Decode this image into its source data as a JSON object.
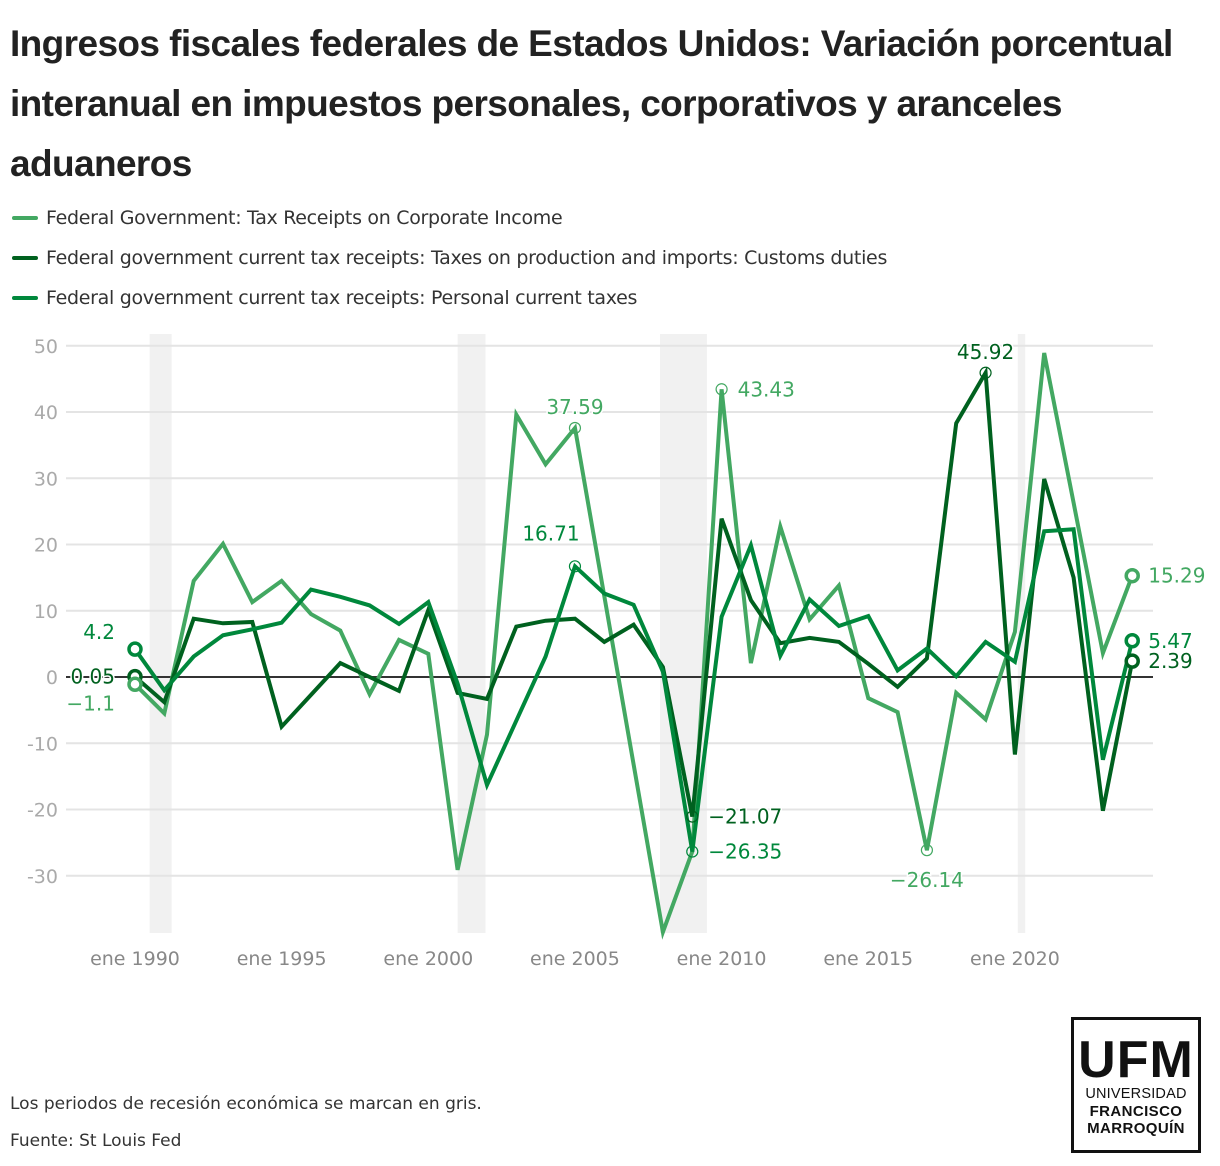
{
  "title": "Ingresos fiscales federales de Estados Unidos: Variación porcentual interanual en impuestos personales, corporativos y aranceles aduaneros",
  "footnotes": {
    "recession_note": "Los periodos de recesión económica se marcan en gris.",
    "source": "Fuente: St Louis Fed"
  },
  "logo": {
    "abbr": "UFM",
    "line1": "UNIVERSIDAD",
    "line2": "FRANCISCO",
    "line3": "MARROQUÍN"
  },
  "chart_data": {
    "type": "line",
    "title": "Ingresos fiscales federales de Estados Unidos: Variación porcentual interanual en impuestos personales, corporativos y aranceles aduaneros",
    "xlabel": "",
    "ylabel": "",
    "x": [
      1990,
      1991,
      1992,
      1993,
      1994,
      1995,
      1996,
      1997,
      1998,
      1999,
      2000,
      2001,
      2002,
      2003,
      2004,
      2005,
      2006,
      2007,
      2008,
      2009,
      2010,
      2011,
      2012,
      2013,
      2014,
      2015,
      2016,
      2017,
      2018,
      2019,
      2020,
      2021,
      2022,
      2023,
      2024
    ],
    "x_ticks": [
      1990,
      1995,
      2000,
      2005,
      2010,
      2015,
      2020
    ],
    "x_tick_labels": [
      "ene 1990",
      "ene 1995",
      "ene 2000",
      "ene 2005",
      "ene 2010",
      "ene 2015",
      "ene 2020"
    ],
    "y_ticks": [
      50,
      40,
      30,
      20,
      10,
      0,
      -10,
      -20,
      -30
    ],
    "y_tick_labels": [
      "50",
      "40",
      "30",
      "20",
      "10",
      "0",
      "-10",
      "-20",
      "-30"
    ],
    "xlim": [
      1989.2,
      2024.7
    ],
    "ylim": [
      -39,
      52
    ],
    "grid": true,
    "legend_position": "top-left",
    "recessions": [
      [
        1990.5,
        1991.25
      ],
      [
        2001.0,
        2001.95
      ],
      [
        2007.9,
        2009.5
      ],
      [
        2020.1,
        2020.35
      ]
    ],
    "series": [
      {
        "name": "Federal Government: Tax Receipts on Corporate Income",
        "color": "#43a862",
        "values": [
          -1.1,
          -5.5,
          14.5,
          20.1,
          11.3,
          14.5,
          9.5,
          7.0,
          -2.6,
          5.6,
          3.5,
          -29.1,
          -8.7,
          39.6,
          32.1,
          37.59,
          12.2,
          -13.2,
          -38.5,
          -26.35,
          43.43,
          2.1,
          22.7,
          8.7,
          13.8,
          -3.2,
          -5.3,
          -26.14,
          -2.4,
          -6.4,
          6.8,
          48.9,
          26.3,
          3.6,
          15.29
        ]
      },
      {
        "name": "Federal government current tax receipts: Taxes on production and imports: Customs duties",
        "color": "#00611f",
        "values": [
          0.05,
          -3.8,
          8.8,
          8.1,
          8.3,
          -7.5,
          -2.7,
          2.1,
          0.0,
          -2.1,
          10.1,
          -2.4,
          -3.3,
          7.6,
          8.5,
          8.8,
          5.3,
          7.9,
          1.5,
          -21.07,
          23.9,
          11.6,
          5.1,
          5.9,
          5.3,
          2.0,
          -1.5,
          2.8,
          38.3,
          45.92,
          -11.7,
          29.9,
          15.0,
          -20.2,
          2.39
        ]
      },
      {
        "name": "Federal government current tax receipts: Personal current taxes",
        "color": "#00883c",
        "values": [
          4.2,
          -2.0,
          3.1,
          6.3,
          7.2,
          8.2,
          13.2,
          12.1,
          10.8,
          8.0,
          11.3,
          -1.0,
          -16.3,
          -6.6,
          3.1,
          16.71,
          12.6,
          10.9,
          0.8,
          -26.35,
          9.1,
          19.9,
          3.2,
          11.7,
          7.7,
          9.2,
          1.0,
          4.3,
          0.1,
          5.3,
          2.3,
          22.0,
          22.3,
          -12.5,
          5.47
        ]
      }
    ],
    "annotations": [
      {
        "series": 2,
        "x": 1990,
        "y": 4.2,
        "text": "4.2",
        "pos": "left-above",
        "start": true
      },
      {
        "series": 1,
        "x": 1990,
        "y": 0.05,
        "text": "0.05",
        "pos": "left",
        "start": true
      },
      {
        "series": 0,
        "x": 1990,
        "y": -1.1,
        "text": "−1.1",
        "pos": "left-below",
        "start": true
      },
      {
        "series": 0,
        "x": 2005,
        "y": 37.59,
        "text": "37.59",
        "pos": "above"
      },
      {
        "series": 2,
        "x": 2005,
        "y": 16.71,
        "text": "16.71",
        "pos": "above-left"
      },
      {
        "series": 0,
        "x": 2010,
        "y": 43.43,
        "text": "43.43",
        "pos": "right"
      },
      {
        "series": 1,
        "x": 2009,
        "y": -21.07,
        "text": "−21.07",
        "pos": "right"
      },
      {
        "series": 2,
        "x": 2009,
        "y": -26.35,
        "text": "−26.35",
        "pos": "right"
      },
      {
        "series": 0,
        "x": 2017,
        "y": -26.14,
        "text": "−26.14",
        "pos": "below"
      },
      {
        "series": 1,
        "x": 2019,
        "y": 45.92,
        "text": "45.92",
        "pos": "above"
      },
      {
        "series": 0,
        "x": 2024,
        "y": 15.29,
        "text": "15.29",
        "pos": "right",
        "end": true
      },
      {
        "series": 2,
        "x": 2024,
        "y": 5.47,
        "text": "5.47",
        "pos": "right",
        "end": true
      },
      {
        "series": 1,
        "x": 2024,
        "y": 2.39,
        "text": "2.39",
        "pos": "right",
        "end": true
      }
    ]
  }
}
